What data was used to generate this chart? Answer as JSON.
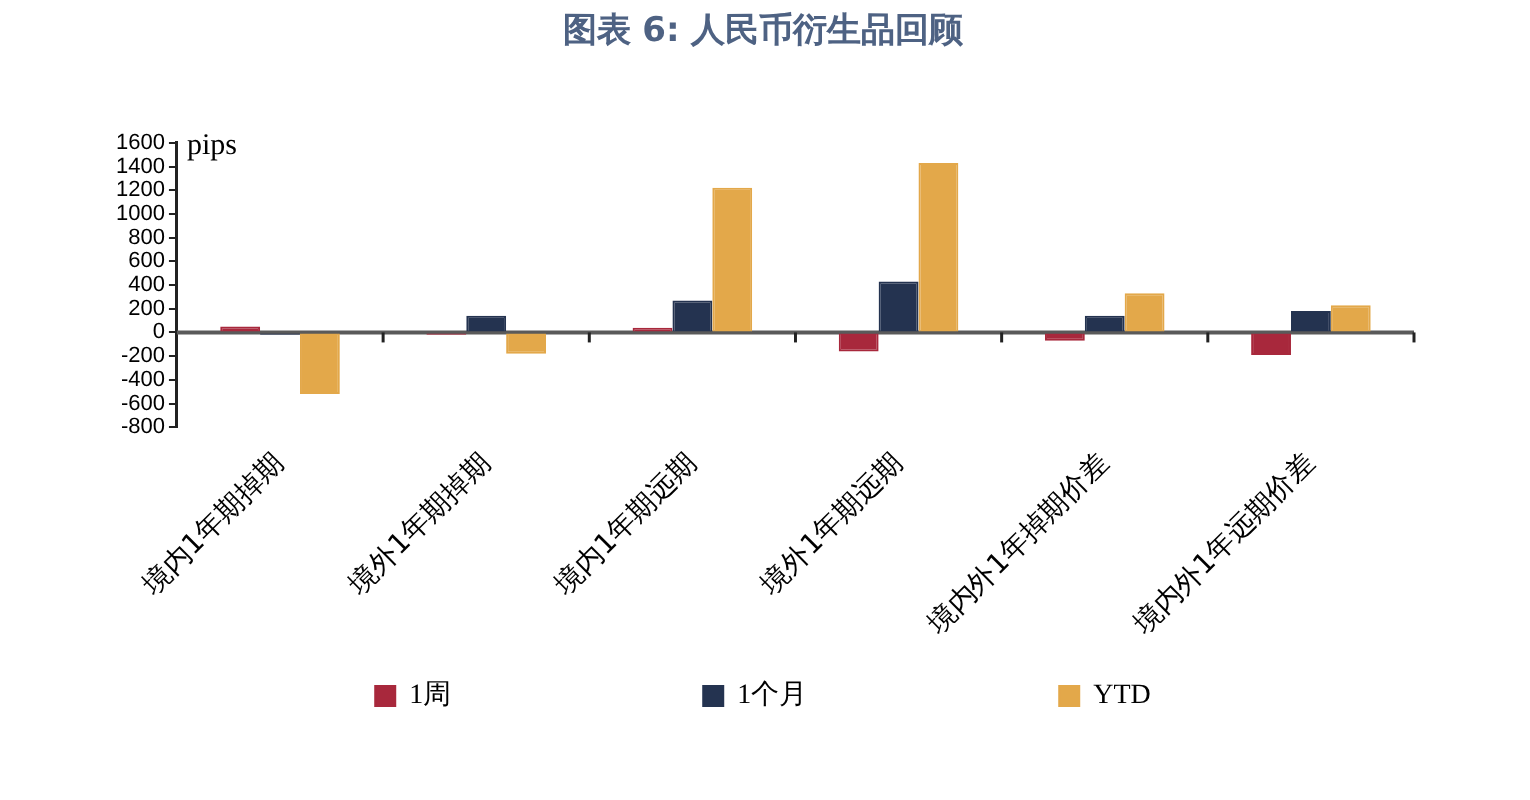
{
  "chart_data": {
    "type": "bar",
    "title": "图表 6: 人民币衍生品回顾",
    "ylabel": "pips",
    "categories": [
      "境内1年期掉期",
      "境外1年期掉期",
      "境内1年期远期",
      "境外1年期远期",
      "境内外1年掉期价差",
      "境内外1年远期价差"
    ],
    "series": [
      {
        "name": "1周",
        "color": "#a8283c",
        "values": [
          50,
          -20,
          40,
          -160,
          -70,
          -190
        ]
      },
      {
        "name": "1个月",
        "color": "#243350",
        "values": [
          -20,
          140,
          270,
          430,
          140,
          180
        ]
      },
      {
        "name": "YTD",
        "color": "#e3a84a",
        "values": [
          -520,
          -180,
          1220,
          1430,
          330,
          230
        ]
      }
    ],
    "ylim": [
      -800,
      1600
    ],
    "yticks": [
      -800,
      -600,
      -400,
      -200,
      0,
      200,
      400,
      600,
      800,
      1000,
      1200,
      1400,
      1600
    ],
    "legend": "bottom"
  }
}
